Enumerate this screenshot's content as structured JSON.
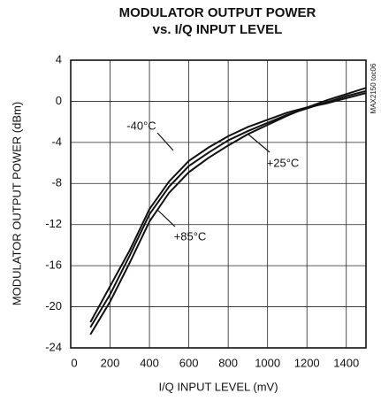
{
  "chart_data": {
    "type": "line",
    "title": [
      "MODULATOR OUTPUT POWER",
      "vs. I/Q INPUT LEVEL"
    ],
    "xlabel": "I/Q INPUT LEVEL (mV)",
    "ylabel": "MODULATOR OUTPUT POWER (dBm)",
    "note": "MAX2150 toc06",
    "x": [
      100,
      200,
      300,
      400,
      500,
      600,
      700,
      800,
      900,
      1000,
      1100,
      1200,
      1300,
      1400,
      1500
    ],
    "series": [
      {
        "name": "-40°C",
        "color": "#111111",
        "values": [
          -21.5,
          -18,
          -14.5,
          -10.5,
          -7.8,
          -5.8,
          -4.5,
          -3.4,
          -2.5,
          -1.8,
          -1.1,
          -0.6,
          -0.2,
          0.3,
          0.8
        ]
      },
      {
        "name": "+25°C",
        "color": "#111111",
        "values": [
          -22,
          -18.8,
          -15,
          -11,
          -8.3,
          -6.3,
          -5,
          -3.8,
          -2.9,
          -2.1,
          -1.3,
          -0.7,
          -0.1,
          0.5,
          1.0
        ]
      },
      {
        "name": "+85°C",
        "color": "#111111",
        "values": [
          -22.7,
          -19.5,
          -15.7,
          -11.7,
          -8.9,
          -6.9,
          -5.5,
          -4.3,
          -3.2,
          -2.3,
          -1.4,
          -0.6,
          0.1,
          0.7,
          1.3
        ]
      }
    ],
    "xlim": [
      0,
      1500
    ],
    "xticks": [
      0,
      200,
      400,
      600,
      800,
      1000,
      1200,
      1400
    ],
    "ylim": [
      -24,
      4
    ],
    "yticks": [
      4,
      0,
      -4,
      -8,
      -12,
      -16,
      -20,
      -24
    ],
    "grid": true
  }
}
